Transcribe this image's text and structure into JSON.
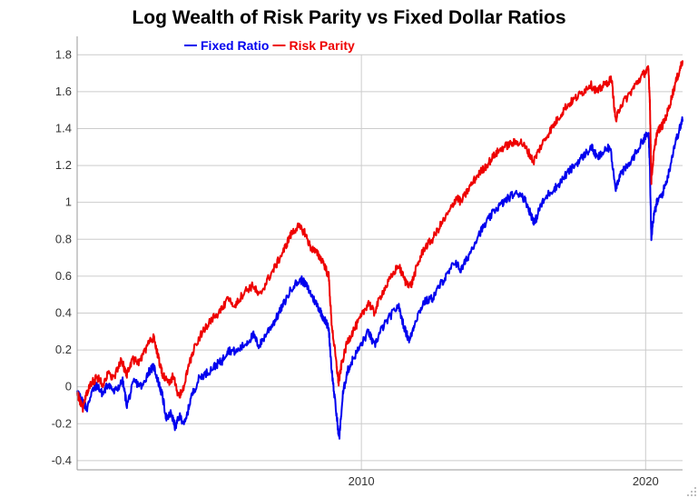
{
  "chart_data": {
    "type": "line",
    "title": "Log Wealth of Risk Parity vs Fixed Dollar Ratios",
    "xlabel": "",
    "ylabel": "",
    "x_range": [
      2000.0,
      2021.3
    ],
    "ylim": [
      -0.45,
      1.9
    ],
    "y_ticks": [
      -0.4,
      -0.2,
      0,
      0.2,
      0.4,
      0.6,
      0.8,
      1,
      1.2,
      1.4,
      1.6,
      1.8
    ],
    "y_tick_labels": [
      "-0.4",
      "-0.2",
      "0",
      "0.2",
      "0.4",
      "0.6",
      "0.8",
      "1",
      "1.2",
      "1.4",
      "1.6",
      "1.8"
    ],
    "x_ticks": [
      2010,
      2020
    ],
    "x_tick_labels": [
      "2010",
      "2020"
    ],
    "grid": true,
    "legend_position": "top-left",
    "series": [
      {
        "name": "Fixed Ratio",
        "color": "#0000ee",
        "points": [
          [
            2000.0,
            -0.02
          ],
          [
            2000.1,
            -0.06
          ],
          [
            2000.2,
            -0.08
          ],
          [
            2000.35,
            -0.12
          ],
          [
            2000.5,
            -0.03
          ],
          [
            2000.7,
            0.01
          ],
          [
            2000.9,
            -0.04
          ],
          [
            2001.1,
            0.02
          ],
          [
            2001.3,
            -0.03
          ],
          [
            2001.6,
            0.03
          ],
          [
            2001.75,
            -0.1
          ],
          [
            2002.0,
            0.03
          ],
          [
            2002.3,
            0.0
          ],
          [
            2002.5,
            0.08
          ],
          [
            2002.7,
            0.11
          ],
          [
            2002.85,
            0.03
          ],
          [
            2003.0,
            -0.05
          ],
          [
            2003.15,
            -0.18
          ],
          [
            2003.3,
            -0.14
          ],
          [
            2003.45,
            -0.22
          ],
          [
            2003.6,
            -0.16
          ],
          [
            2003.8,
            -0.2
          ],
          [
            2004.0,
            -0.06
          ],
          [
            2004.3,
            0.05
          ],
          [
            2004.6,
            0.08
          ],
          [
            2004.9,
            0.12
          ],
          [
            2005.1,
            0.14
          ],
          [
            2005.3,
            0.2
          ],
          [
            2005.6,
            0.19
          ],
          [
            2005.9,
            0.23
          ],
          [
            2006.2,
            0.28
          ],
          [
            2006.4,
            0.22
          ],
          [
            2006.7,
            0.3
          ],
          [
            2007.0,
            0.37
          ],
          [
            2007.3,
            0.46
          ],
          [
            2007.6,
            0.55
          ],
          [
            2007.9,
            0.58
          ],
          [
            2008.1,
            0.54
          ],
          [
            2008.3,
            0.48
          ],
          [
            2008.5,
            0.43
          ],
          [
            2008.65,
            0.38
          ],
          [
            2008.85,
            0.32
          ],
          [
            2008.95,
            0.1
          ],
          [
            2009.1,
            -0.12
          ],
          [
            2009.22,
            -0.28
          ],
          [
            2009.35,
            -0.04
          ],
          [
            2009.5,
            0.08
          ],
          [
            2009.7,
            0.15
          ],
          [
            2010.0,
            0.23
          ],
          [
            2010.25,
            0.3
          ],
          [
            2010.45,
            0.22
          ],
          [
            2010.7,
            0.31
          ],
          [
            2011.0,
            0.38
          ],
          [
            2011.3,
            0.44
          ],
          [
            2011.55,
            0.3
          ],
          [
            2011.7,
            0.25
          ],
          [
            2011.9,
            0.36
          ],
          [
            2012.2,
            0.46
          ],
          [
            2012.5,
            0.48
          ],
          [
            2012.8,
            0.56
          ],
          [
            2013.0,
            0.6
          ],
          [
            2013.3,
            0.68
          ],
          [
            2013.5,
            0.63
          ],
          [
            2013.8,
            0.72
          ],
          [
            2014.1,
            0.82
          ],
          [
            2014.4,
            0.89
          ],
          [
            2014.7,
            0.96
          ],
          [
            2015.0,
            1.0
          ],
          [
            2015.3,
            1.04
          ],
          [
            2015.6,
            1.05
          ],
          [
            2015.8,
            1.0
          ],
          [
            2016.0,
            0.92
          ],
          [
            2016.1,
            0.89
          ],
          [
            2016.3,
            0.98
          ],
          [
            2016.6,
            1.05
          ],
          [
            2016.9,
            1.09
          ],
          [
            2017.2,
            1.15
          ],
          [
            2017.5,
            1.2
          ],
          [
            2017.8,
            1.25
          ],
          [
            2018.1,
            1.3
          ],
          [
            2018.3,
            1.24
          ],
          [
            2018.5,
            1.27
          ],
          [
            2018.75,
            1.3
          ],
          [
            2018.95,
            1.08
          ],
          [
            2019.1,
            1.15
          ],
          [
            2019.4,
            1.2
          ],
          [
            2019.7,
            1.28
          ],
          [
            2019.95,
            1.35
          ],
          [
            2020.1,
            1.37
          ],
          [
            2020.15,
            1.2
          ],
          [
            2020.2,
            0.81
          ],
          [
            2020.28,
            0.92
          ],
          [
            2020.4,
            1.0
          ],
          [
            2020.6,
            1.05
          ],
          [
            2020.8,
            1.15
          ],
          [
            2021.0,
            1.3
          ],
          [
            2021.2,
            1.4
          ],
          [
            2021.3,
            1.45
          ]
        ]
      },
      {
        "name": "Risk Parity",
        "color": "#ee0000",
        "points": [
          [
            2000.0,
            -0.03
          ],
          [
            2000.1,
            -0.08
          ],
          [
            2000.2,
            -0.12
          ],
          [
            2000.35,
            -0.03
          ],
          [
            2000.5,
            0.02
          ],
          [
            2000.7,
            0.05
          ],
          [
            2000.9,
            0.02
          ],
          [
            2001.1,
            0.07
          ],
          [
            2001.3,
            0.05
          ],
          [
            2001.55,
            0.14
          ],
          [
            2001.75,
            0.07
          ],
          [
            2001.95,
            0.15
          ],
          [
            2002.2,
            0.13
          ],
          [
            2002.45,
            0.22
          ],
          [
            2002.7,
            0.27
          ],
          [
            2002.85,
            0.16
          ],
          [
            2003.0,
            0.07
          ],
          [
            2003.2,
            0.02
          ],
          [
            2003.4,
            0.06
          ],
          [
            2003.55,
            -0.05
          ],
          [
            2003.7,
            -0.03
          ],
          [
            2003.9,
            0.1
          ],
          [
            2004.1,
            0.2
          ],
          [
            2004.4,
            0.3
          ],
          [
            2004.7,
            0.36
          ],
          [
            2005.0,
            0.4
          ],
          [
            2005.3,
            0.47
          ],
          [
            2005.6,
            0.45
          ],
          [
            2005.9,
            0.52
          ],
          [
            2006.2,
            0.55
          ],
          [
            2006.4,
            0.49
          ],
          [
            2006.7,
            0.58
          ],
          [
            2007.0,
            0.66
          ],
          [
            2007.3,
            0.75
          ],
          [
            2007.5,
            0.82
          ],
          [
            2007.75,
            0.87
          ],
          [
            2008.0,
            0.84
          ],
          [
            2008.2,
            0.76
          ],
          [
            2008.45,
            0.72
          ],
          [
            2008.65,
            0.68
          ],
          [
            2008.85,
            0.6
          ],
          [
            2008.95,
            0.35
          ],
          [
            2009.1,
            0.15
          ],
          [
            2009.2,
            0.02
          ],
          [
            2009.3,
            0.12
          ],
          [
            2009.5,
            0.24
          ],
          [
            2009.7,
            0.3
          ],
          [
            2010.0,
            0.38
          ],
          [
            2010.25,
            0.46
          ],
          [
            2010.45,
            0.4
          ],
          [
            2010.7,
            0.5
          ],
          [
            2011.0,
            0.58
          ],
          [
            2011.3,
            0.66
          ],
          [
            2011.55,
            0.57
          ],
          [
            2011.75,
            0.55
          ],
          [
            2011.95,
            0.65
          ],
          [
            2012.2,
            0.75
          ],
          [
            2012.5,
            0.8
          ],
          [
            2012.8,
            0.88
          ],
          [
            2013.1,
            0.95
          ],
          [
            2013.35,
            1.03
          ],
          [
            2013.5,
            1.0
          ],
          [
            2013.8,
            1.08
          ],
          [
            2014.1,
            1.15
          ],
          [
            2014.4,
            1.2
          ],
          [
            2014.7,
            1.26
          ],
          [
            2015.0,
            1.3
          ],
          [
            2015.3,
            1.32
          ],
          [
            2015.6,
            1.33
          ],
          [
            2015.85,
            1.28
          ],
          [
            2016.05,
            1.22
          ],
          [
            2016.3,
            1.3
          ],
          [
            2016.6,
            1.38
          ],
          [
            2016.9,
            1.45
          ],
          [
            2017.2,
            1.52
          ],
          [
            2017.5,
            1.56
          ],
          [
            2017.8,
            1.6
          ],
          [
            2018.05,
            1.64
          ],
          [
            2018.3,
            1.6
          ],
          [
            2018.5,
            1.63
          ],
          [
            2018.8,
            1.67
          ],
          [
            2018.95,
            1.44
          ],
          [
            2019.1,
            1.52
          ],
          [
            2019.4,
            1.58
          ],
          [
            2019.7,
            1.65
          ],
          [
            2019.95,
            1.7
          ],
          [
            2020.1,
            1.72
          ],
          [
            2020.15,
            1.55
          ],
          [
            2020.2,
            1.12
          ],
          [
            2020.28,
            1.25
          ],
          [
            2020.4,
            1.38
          ],
          [
            2020.6,
            1.42
          ],
          [
            2020.8,
            1.5
          ],
          [
            2021.0,
            1.62
          ],
          [
            2021.2,
            1.72
          ],
          [
            2021.3,
            1.77
          ]
        ]
      }
    ]
  }
}
